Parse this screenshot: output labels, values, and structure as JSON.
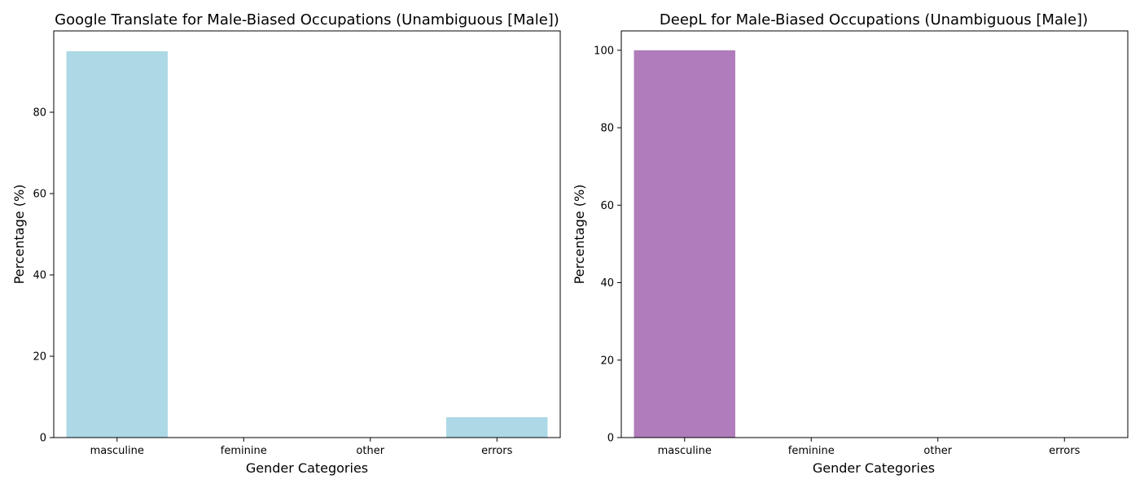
{
  "chart_data": [
    {
      "type": "bar",
      "title": "Google Translate for Male-Biased Occupations (Unambiguous [Male])",
      "xlabel": "Gender Categories",
      "ylabel": "Percentage (%)",
      "categories": [
        "masculine",
        "feminine",
        "other",
        "errors"
      ],
      "values": [
        95,
        0,
        0,
        5
      ],
      "ylim": [
        0,
        100
      ],
      "yticks": [
        0,
        20,
        40,
        60,
        80
      ],
      "bar_color": "#add8e6",
      "grid": false
    },
    {
      "type": "bar",
      "title": "DeepL for Male-Biased Occupations (Unambiguous [Male])",
      "xlabel": "Gender Categories",
      "ylabel": "Percentage (%)",
      "categories": [
        "masculine",
        "feminine",
        "other",
        "errors"
      ],
      "values": [
        100,
        0,
        0,
        0
      ],
      "ylim": [
        0,
        105
      ],
      "yticks": [
        0,
        20,
        40,
        60,
        80,
        100
      ],
      "bar_color": "#b07cbb",
      "grid": false
    }
  ]
}
